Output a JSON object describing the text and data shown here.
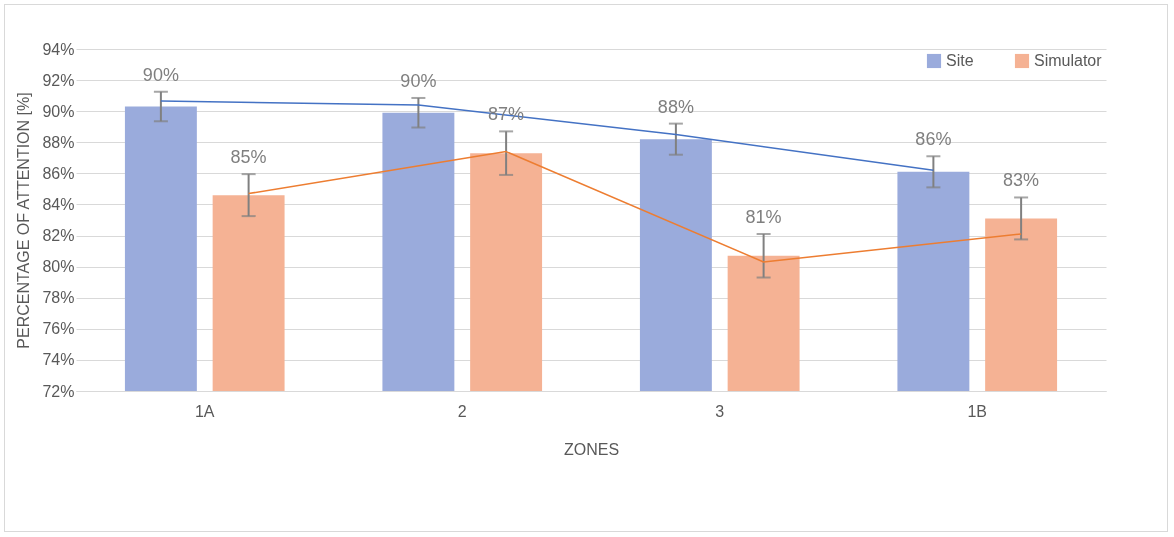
{
  "chart_data": {
    "type": "bar",
    "xlabel": "ZONES",
    "ylabel": "PERCENTAGE OF ATTENTION [%]",
    "categories": [
      "1A",
      "2",
      "3",
      "1B"
    ],
    "series": [
      {
        "name": "Site",
        "color": "#9aabdc",
        "values": [
          90.3,
          89.9,
          88.2,
          86.1
        ],
        "errors": [
          0.95,
          0.95,
          1.0,
          1.0
        ],
        "value_labels": [
          "90%",
          "90%",
          "88%",
          "86%"
        ]
      },
      {
        "name": "Simulator",
        "color": "#f5b294",
        "values": [
          84.6,
          87.3,
          80.7,
          83.1
        ],
        "errors": [
          1.35,
          1.4,
          1.4,
          1.35
        ],
        "value_labels": [
          "85%",
          "87%",
          "81%",
          "83%"
        ]
      },
      {
        "type": "line",
        "color": "#4472c4",
        "values": [
          90.65,
          90.4,
          88.5,
          86.2
        ]
      },
      {
        "type": "line",
        "color": "#ed7d31",
        "values": [
          84.7,
          87.4,
          80.3,
          82.1
        ]
      }
    ],
    "ylim": [
      72,
      94
    ],
    "yticks": [
      {
        "value": 72,
        "label": "72%"
      },
      {
        "value": 74,
        "label": "74%"
      },
      {
        "value": 76,
        "label": "76%"
      },
      {
        "value": 78,
        "label": "78%"
      },
      {
        "value": 80,
        "label": "80%"
      },
      {
        "value": 82,
        "label": "82%"
      },
      {
        "value": 84,
        "label": "84%"
      },
      {
        "value": 86,
        "label": "86%"
      },
      {
        "value": 88,
        "label": "88%"
      },
      {
        "value": 90,
        "label": "90%"
      },
      {
        "value": 92,
        "label": "92%"
      },
      {
        "value": 94,
        "label": "94%"
      }
    ],
    "grid": "y",
    "legend": "top right"
  }
}
